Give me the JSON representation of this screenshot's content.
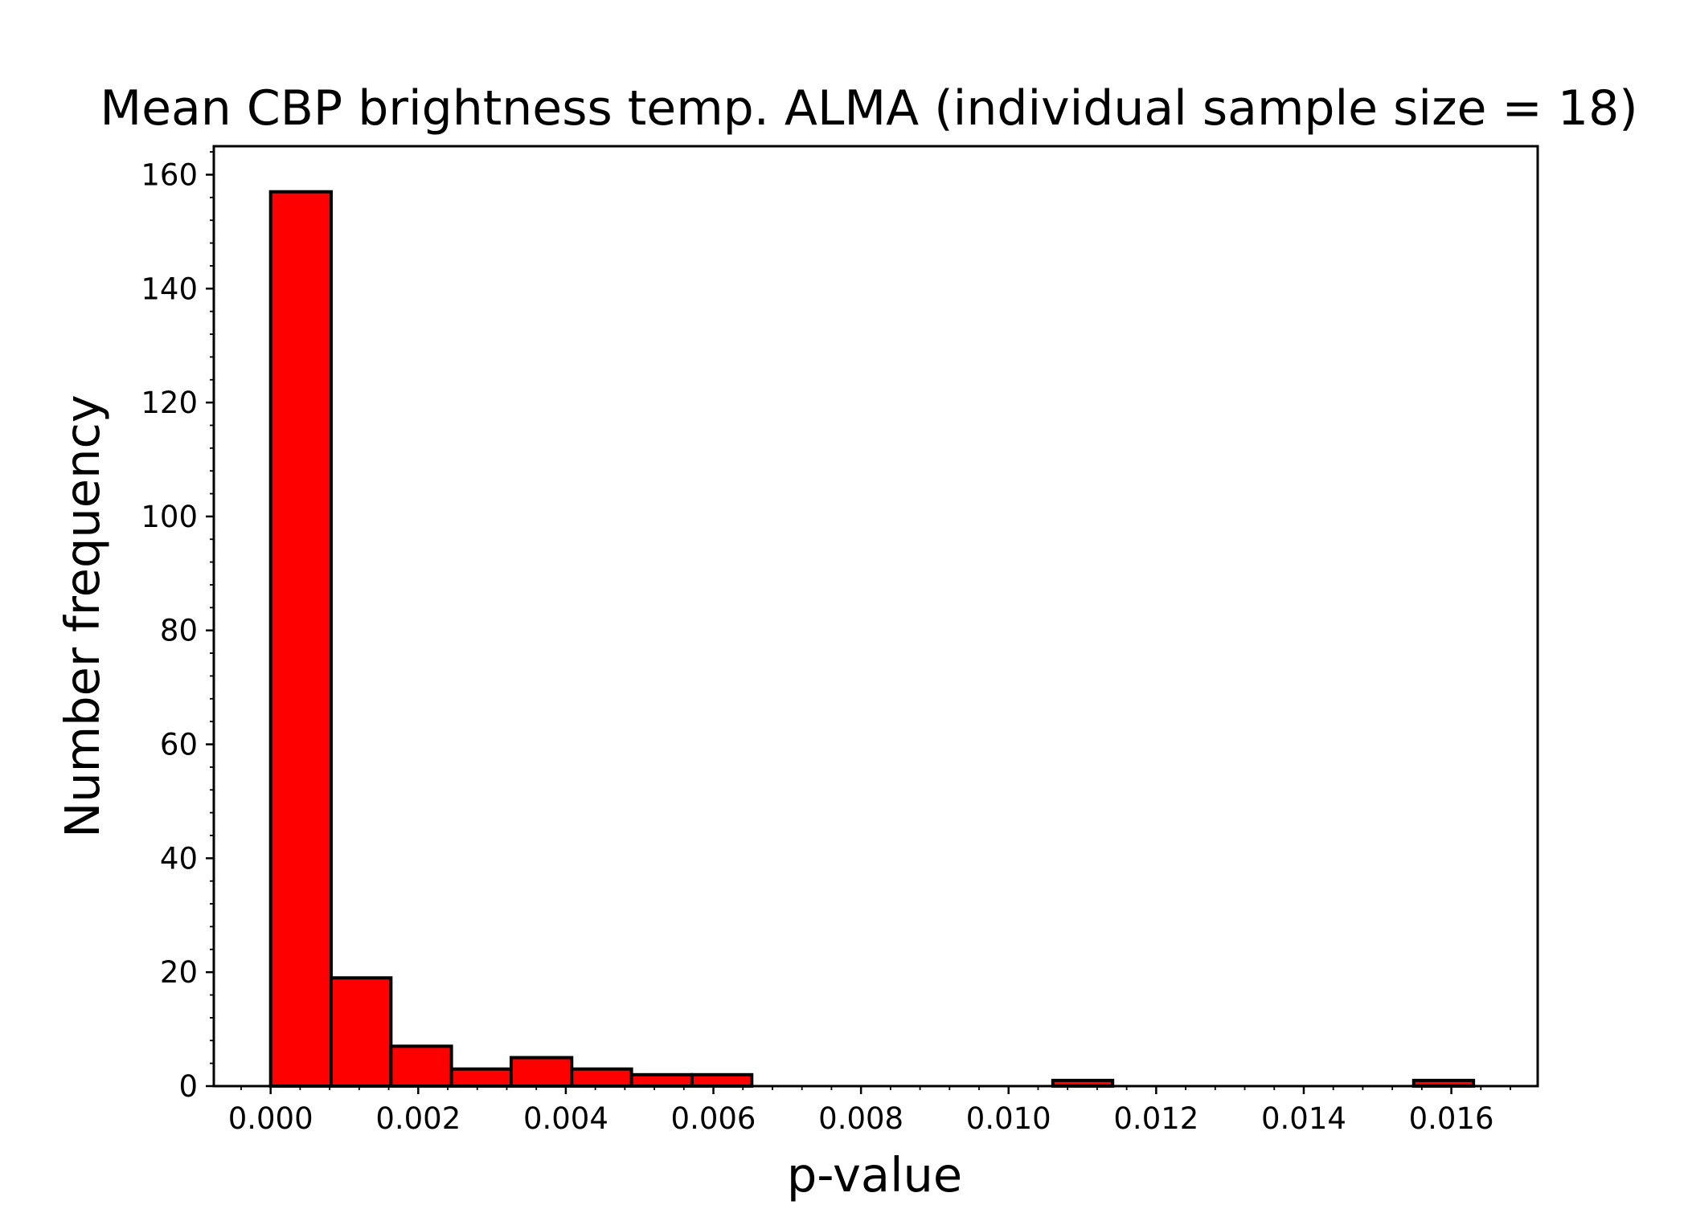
{
  "chart_data": {
    "type": "bar",
    "title": "Mean CBP brightness temp. ALMA (individual sample size = 18)",
    "xlabel": "p-value",
    "ylabel": "Number frequency",
    "bar_color": "#ff0000",
    "edge_color": "#000000",
    "xlim": [
      -0.00077,
      0.01717
    ],
    "ylim": [
      0,
      165
    ],
    "x_ticks": [
      0.0,
      0.002,
      0.004,
      0.006,
      0.008,
      0.01,
      0.012,
      0.014,
      0.016
    ],
    "x_tick_labels": [
      "0.000",
      "0.002",
      "0.004",
      "0.006",
      "0.008",
      "0.010",
      "0.012",
      "0.014",
      "0.016"
    ],
    "y_ticks": [
      0,
      20,
      40,
      60,
      80,
      100,
      120,
      140,
      160
    ],
    "y_tick_labels": [
      "0",
      "20",
      "40",
      "60",
      "80",
      "100",
      "120",
      "140",
      "160"
    ],
    "minor_ticks": true,
    "grid": false,
    "bins": [
      {
        "x0": 0.0,
        "x1": 0.00082,
        "count": 157
      },
      {
        "x0": 0.00082,
        "x1": 0.00163,
        "count": 19
      },
      {
        "x0": 0.00163,
        "x1": 0.00245,
        "count": 7
      },
      {
        "x0": 0.00245,
        "x1": 0.00326,
        "count": 3
      },
      {
        "x0": 0.00326,
        "x1": 0.00408,
        "count": 5
      },
      {
        "x0": 0.00408,
        "x1": 0.00489,
        "count": 3
      },
      {
        "x0": 0.00489,
        "x1": 0.00571,
        "count": 2
      },
      {
        "x0": 0.00571,
        "x1": 0.00652,
        "count": 2
      },
      {
        "x0": 0.00652,
        "x1": 0.00734,
        "count": 0
      },
      {
        "x0": 0.00734,
        "x1": 0.00815,
        "count": 0
      },
      {
        "x0": 0.00815,
        "x1": 0.00897,
        "count": 0
      },
      {
        "x0": 0.00897,
        "x1": 0.00978,
        "count": 0
      },
      {
        "x0": 0.00978,
        "x1": 0.0106,
        "count": 0
      },
      {
        "x0": 0.0106,
        "x1": 0.01141,
        "count": 1
      },
      {
        "x0": 0.01141,
        "x1": 0.01223,
        "count": 0
      },
      {
        "x0": 0.01223,
        "x1": 0.01304,
        "count": 0
      },
      {
        "x0": 0.01304,
        "x1": 0.01386,
        "count": 0
      },
      {
        "x0": 0.01386,
        "x1": 0.01467,
        "count": 0
      },
      {
        "x0": 0.01467,
        "x1": 0.01549,
        "count": 0
      },
      {
        "x0": 0.01549,
        "x1": 0.0163,
        "count": 1
      }
    ]
  }
}
